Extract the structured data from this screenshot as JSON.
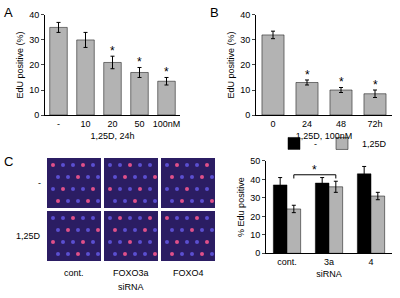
{
  "chart_data": [
    {
      "type": "bar",
      "label": "A",
      "x_label": "1,25D, 24h",
      "y_label": "EdU positive (%)",
      "categories": [
        "-",
        "10",
        "20",
        "50",
        "100nM"
      ],
      "values": [
        35,
        30,
        21,
        17,
        13.5
      ],
      "errors": [
        2,
        3,
        2.5,
        2,
        1.5
      ],
      "color": "#b3b3b3",
      "ylim": [
        0,
        40
      ],
      "yticks": [
        0,
        10,
        20,
        30,
        40
      ],
      "annotations": [
        {
          "category": "20",
          "text": "*"
        },
        {
          "category": "50",
          "text": "*"
        },
        {
          "category": "100nM",
          "text": "*"
        }
      ]
    },
    {
      "type": "bar",
      "label": "B",
      "x_label": "1,25D, 100nM",
      "y_label": "EdU positive (%)",
      "categories": [
        "0",
        "24",
        "48",
        "72h"
      ],
      "values": [
        32,
        13,
        10,
        8.5
      ],
      "errors": [
        1.5,
        1,
        1,
        1.5
      ],
      "color": "#b3b3b3",
      "ylim": [
        0,
        40
      ],
      "yticks": [
        0,
        10,
        20,
        30,
        40
      ],
      "annotations": [
        {
          "category": "24",
          "text": "*"
        },
        {
          "category": "48",
          "text": "*"
        },
        {
          "category": "72h",
          "text": "*"
        }
      ]
    },
    {
      "type": "bar",
      "label": "C",
      "x_label": "siRNA",
      "y_label": "% Edu positive",
      "categories": [
        "cont.",
        "3a",
        "4"
      ],
      "series": [
        {
          "name": "-",
          "color": "#000000",
          "values": [
            37,
            38,
            43
          ],
          "errors": [
            4,
            3,
            4
          ]
        },
        {
          "name": "1,25D",
          "color": "#b3b3b3",
          "values": [
            24,
            36,
            31
          ],
          "errors": [
            2,
            3,
            2
          ]
        }
      ],
      "ylim": [
        0,
        50
      ],
      "yticks": [
        0,
        10,
        20,
        30,
        40,
        50
      ],
      "legend": "top right",
      "comparisons": [
        {
          "from": "cont.",
          "to": "3a",
          "series": "1,25D",
          "text": "*"
        }
      ]
    }
  ],
  "images": {
    "row_labels": [
      "-",
      "1,25D"
    ],
    "column_labels": [
      "cont.",
      "FOXO3a",
      "FOXO4"
    ],
    "axis_label": "siRNA"
  }
}
